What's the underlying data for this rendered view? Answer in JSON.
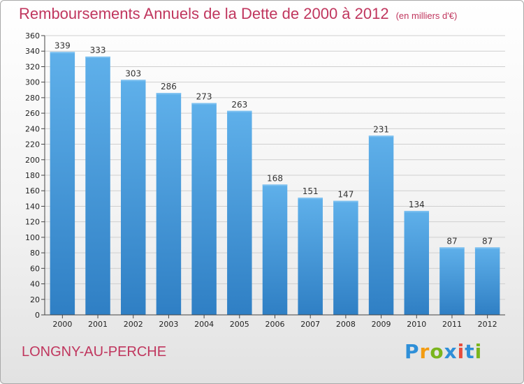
{
  "title": "Remboursements Annuels de la Dette de 2000 à 2012",
  "unit": "(en milliers d'€)",
  "place": "LONGNY-AU-PERCHE",
  "logo": {
    "letters": [
      "P",
      "r",
      "o",
      "x",
      "i",
      "t",
      "i"
    ],
    "colors": [
      "#2e8fd8",
      "#f39c12",
      "#7ab51d",
      "#2e8fd8",
      "#e74c3c",
      "#2e8fd8",
      "#7ab51d"
    ]
  },
  "colors": {
    "bar": "#4a9fe0",
    "bar_dark": "#2f7fc4",
    "title": "#c0365e"
  },
  "chart_data": {
    "type": "bar",
    "categories": [
      "2000",
      "2001",
      "2002",
      "2003",
      "2004",
      "2005",
      "2006",
      "2007",
      "2008",
      "2009",
      "2010",
      "2011",
      "2012"
    ],
    "values": [
      339,
      333,
      303,
      286,
      273,
      263,
      168,
      151,
      147,
      231,
      134,
      87,
      87
    ],
    "ylim": [
      0,
      360
    ],
    "ytick_step": 20,
    "grid": true
  }
}
